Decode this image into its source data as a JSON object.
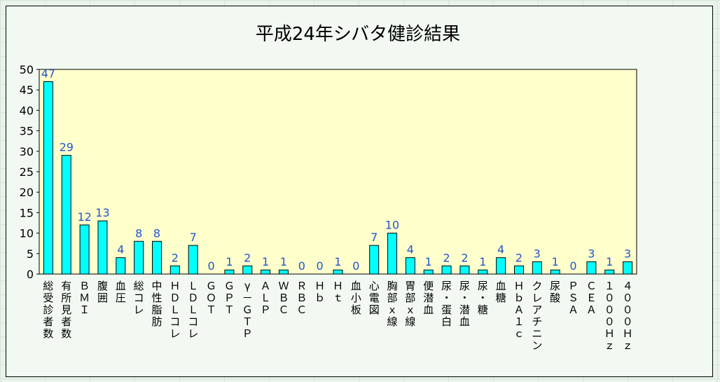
{
  "chart_data": {
    "type": "bar",
    "title": "平成24年シバタ健診結果",
    "xlabel": "",
    "ylabel": "",
    "ylim": [
      0,
      50
    ],
    "yticks": [
      0,
      5,
      10,
      15,
      20,
      25,
      30,
      35,
      40,
      45,
      50
    ],
    "grid": false,
    "plot_background": "#ffffcc",
    "bar_color": "#00ffff",
    "data_label_color": "#2255cc",
    "categories": [
      "総受診者数",
      "有所見者数",
      "ＢＭＩ",
      "腹囲",
      "血圧",
      "総コレ",
      "中性脂肪",
      "ＨＤＬコレ",
      "ＬＤＬコレ",
      "ＧＯＴ",
      "ＧＰＴ",
      "γ－ＧＴＰ",
      "ＡＬＰ",
      "ＷＢＣ",
      "ＲＢＣ",
      "Ｈｂ",
      "Ｈｔ",
      "血小板",
      "心電図",
      "胸部ｘ線",
      "胃部ｘ線",
      "便潜血",
      "尿・蛋白",
      "尿・潜血",
      "尿・糖",
      "血糖",
      "ＨｂＡ１ｃ",
      "クレアチニン",
      "尿酸",
      "ＰＳＡ",
      "ＣＥＡ",
      "１０００Ｈｚ",
      "４０００Ｈｚ"
    ],
    "values": [
      47,
      29,
      12,
      13,
      4,
      8,
      8,
      2,
      7,
      0,
      1,
      2,
      1,
      1,
      0,
      0,
      1,
      0,
      7,
      10,
      4,
      1,
      2,
      2,
      1,
      4,
      2,
      3,
      1,
      0,
      3,
      1,
      3
    ]
  }
}
